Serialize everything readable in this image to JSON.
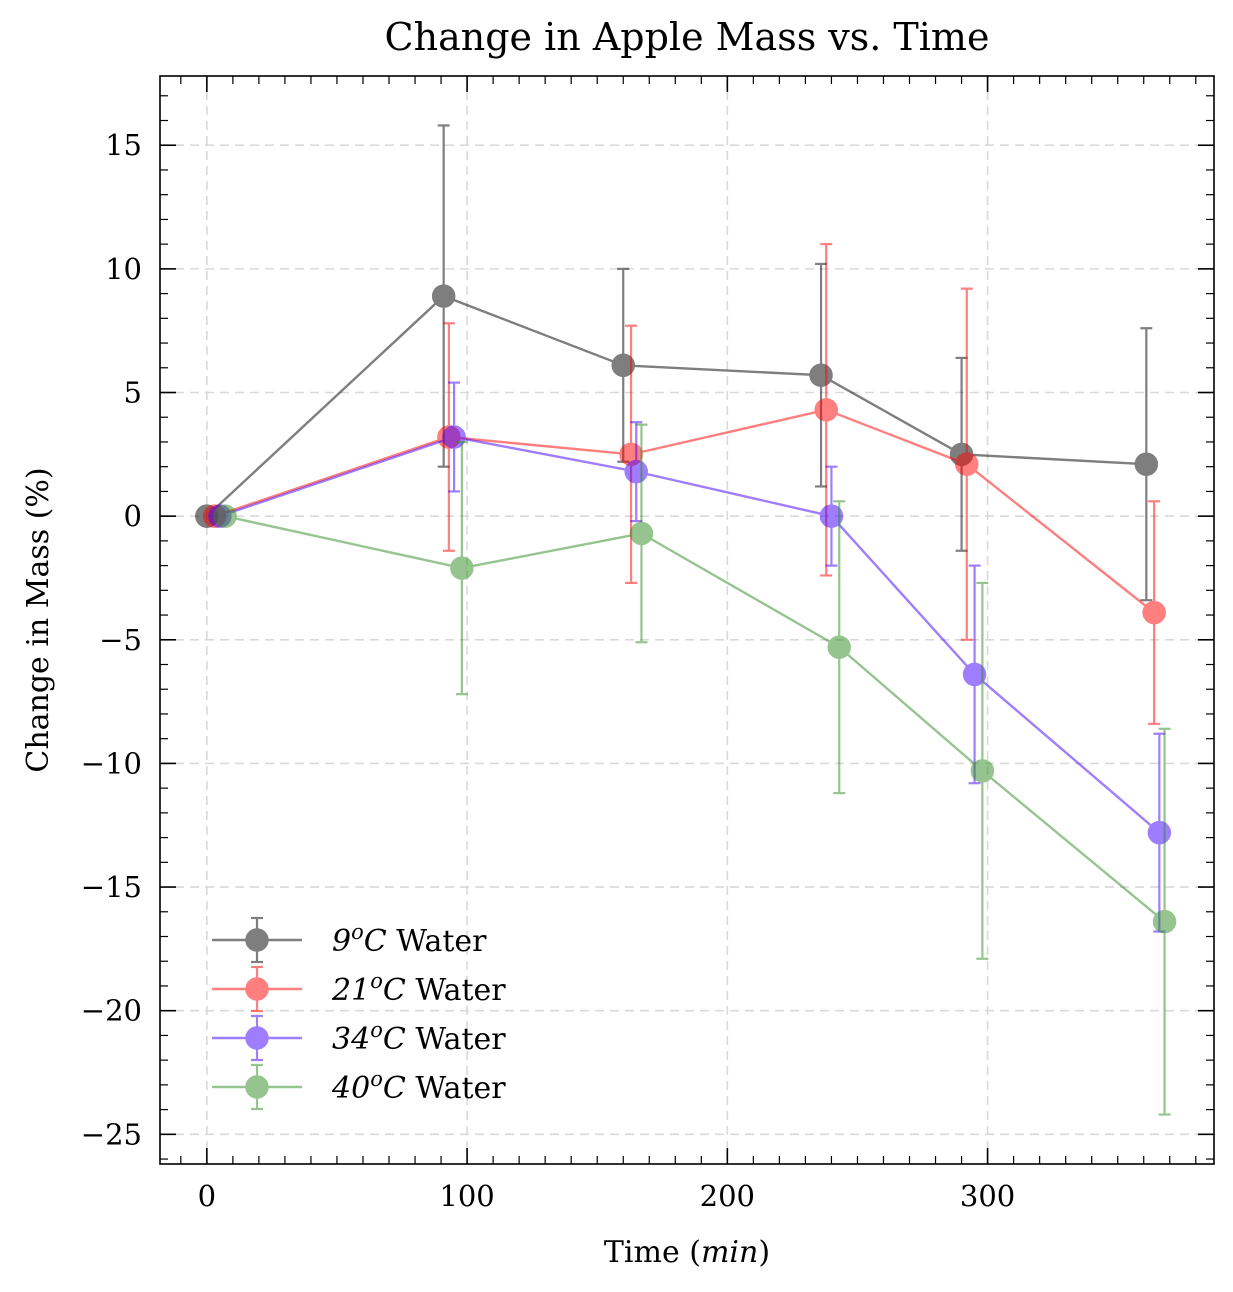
{
  "chart_data": {
    "type": "line",
    "title": "Change in Apple Mass vs. Time",
    "xlabel": "Time (min)",
    "ylabel": "Change in Mass (%)",
    "xlim": [
      -18,
      387
    ],
    "ylim": [
      -26.2,
      17.8
    ],
    "xticks": [
      0,
      100,
      200,
      300
    ],
    "xtick_labels": [
      "0",
      "100",
      "200",
      "300"
    ],
    "yticks": [
      15,
      10,
      5,
      0,
      -5,
      -10,
      -15,
      -20,
      -25
    ],
    "ytick_labels": [
      "15",
      "10",
      "5",
      "0",
      "−5",
      "−10",
      "−15",
      "−20",
      "−25"
    ],
    "grid": true,
    "legend_position": "lower-left",
    "series": [
      {
        "name": "9°C Water",
        "legend_num": "9",
        "legend_sup": "o",
        "legend_c": "C",
        "legend_tail": "Water",
        "color": "#000000",
        "x": [
          0,
          91,
          160,
          236,
          290,
          361
        ],
        "y": [
          0,
          8.9,
          6.1,
          5.7,
          2.5,
          2.1
        ],
        "err": [
          0,
          6.9,
          3.9,
          4.5,
          3.9,
          5.5
        ]
      },
      {
        "name": "21°C Water",
        "legend_num": "21",
        "legend_sup": "o",
        "legend_c": "C",
        "legend_tail": "Water",
        "color": "#ff0000",
        "x": [
          3,
          93,
          163,
          238,
          292,
          364
        ],
        "y": [
          0,
          3.2,
          2.5,
          4.3,
          2.1,
          -3.9
        ],
        "err": [
          0,
          4.6,
          5.2,
          6.7,
          7.1,
          4.5
        ]
      },
      {
        "name": "34°C Water",
        "legend_num": "34",
        "legend_sup": "o",
        "legend_c": "C",
        "legend_tail": "Water",
        "color": "#4000ff",
        "x": [
          5,
          95,
          165,
          240,
          295,
          366
        ],
        "y": [
          0,
          3.2,
          1.8,
          0.0,
          -6.4,
          -12.8
        ],
        "err": [
          0,
          2.2,
          2.0,
          2.0,
          4.4,
          4.0
        ]
      },
      {
        "name": "40°C Water",
        "legend_num": "40",
        "legend_sup": "o",
        "legend_c": "C",
        "legend_tail": "Water",
        "color": "#2e8b22",
        "x": [
          7,
          98,
          167,
          243,
          298,
          368
        ],
        "y": [
          0,
          -2.1,
          -0.7,
          -5.3,
          -10.3,
          -16.4
        ],
        "err": [
          0,
          5.1,
          4.4,
          5.9,
          7.6,
          7.8
        ]
      }
    ]
  }
}
